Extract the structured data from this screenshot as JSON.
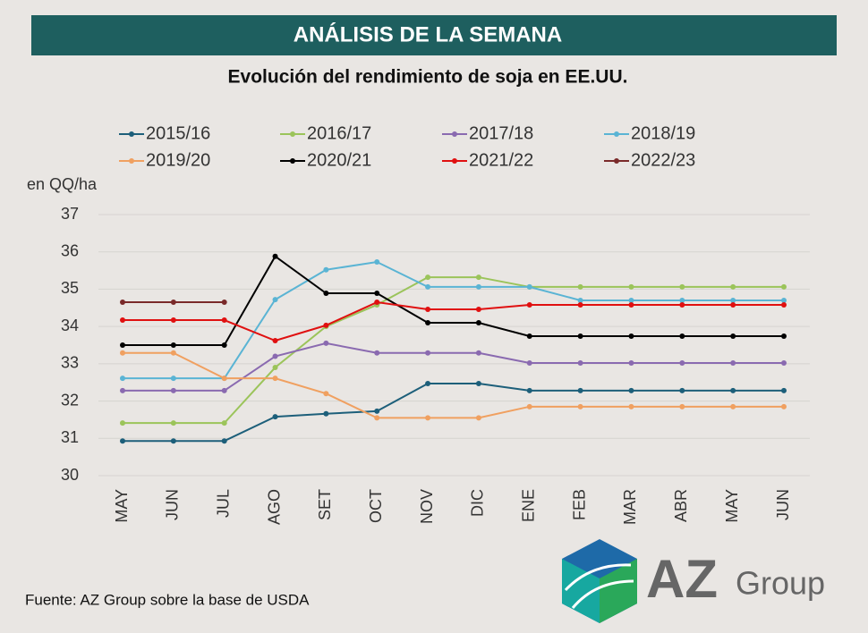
{
  "header": "ANÁLISIS DE LA SEMANA",
  "chart_data": {
    "type": "line",
    "title": "Evolución del rendimiento de soja en EE.UU.",
    "y_label": "en QQ/ha",
    "categories": [
      "MAY",
      "JUN",
      "JUL",
      "AGO",
      "SET",
      "OCT",
      "NOV",
      "DIC",
      "ENE",
      "FEB",
      "MAR",
      "ABR",
      "MAY",
      "JUN"
    ],
    "ylim": [
      30,
      37
    ],
    "yticks": [
      30,
      31,
      32,
      33,
      34,
      35,
      36,
      37
    ],
    "grid": true,
    "legend": "top",
    "series": [
      {
        "name": "2015/16",
        "color": "#1d5f7a",
        "values": [
          30.93,
          30.93,
          30.93,
          31.58,
          31.66,
          31.73,
          32.47,
          32.47,
          32.28,
          32.28,
          32.28,
          32.28,
          32.28,
          32.28
        ]
      },
      {
        "name": "2016/17",
        "color": "#9bc45a",
        "values": [
          31.41,
          31.41,
          31.41,
          32.9,
          34.0,
          34.58,
          35.32,
          35.32,
          35.06,
          35.06,
          35.06,
          35.06,
          35.06,
          35.06
        ]
      },
      {
        "name": "2017/18",
        "color": "#8a6ab0",
        "values": [
          32.28,
          32.28,
          32.28,
          33.2,
          33.55,
          33.29,
          33.29,
          33.29,
          33.02,
          33.02,
          33.02,
          33.02,
          33.02,
          33.02
        ]
      },
      {
        "name": "2018/19",
        "color": "#5ab4d4",
        "values": [
          32.61,
          32.61,
          32.61,
          34.72,
          35.52,
          35.73,
          35.06,
          35.06,
          35.06,
          34.7,
          34.7,
          34.7,
          34.7,
          34.7
        ]
      },
      {
        "name": "2019/20",
        "color": "#f0a060",
        "values": [
          33.29,
          33.29,
          32.61,
          32.61,
          32.2,
          31.55,
          31.55,
          31.55,
          31.85,
          31.85,
          31.85,
          31.85,
          31.85,
          31.85
        ]
      },
      {
        "name": "2020/21",
        "color": "#000000",
        "values": [
          33.5,
          33.5,
          33.5,
          35.88,
          34.89,
          34.89,
          34.1,
          34.1,
          33.74,
          33.74,
          33.74,
          33.74,
          33.74,
          33.74
        ]
      },
      {
        "name": "2021/22",
        "color": "#e01010",
        "values": [
          34.17,
          34.17,
          34.17,
          33.62,
          34.03,
          34.65,
          34.46,
          34.46,
          34.58,
          34.58,
          34.58,
          34.58,
          34.58,
          34.58
        ]
      },
      {
        "name": "2022/23",
        "color": "#7a2a2a",
        "values": [
          34.65,
          34.65,
          34.65,
          null,
          null,
          null,
          null,
          null,
          null,
          null,
          null,
          null,
          null,
          null
        ]
      }
    ]
  },
  "source": "Fuente: AZ Group sobre la base de USDA",
  "logo": {
    "brand": "AZ",
    "suffix": "Group"
  }
}
